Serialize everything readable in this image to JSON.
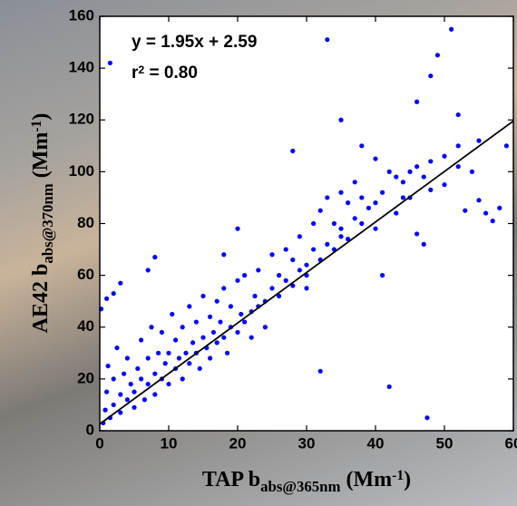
{
  "chart_data": {
    "type": "scatter",
    "color": "#0000ff",
    "xlim": [
      0,
      60
    ],
    "ylim": [
      0,
      160
    ],
    "xticks": [
      0,
      10,
      20,
      30,
      40,
      50,
      60
    ],
    "yticks": [
      0,
      20,
      40,
      60,
      80,
      100,
      120,
      140,
      160
    ],
    "fit": {
      "slope": 1.95,
      "intercept": 2.59,
      "color": "#000000"
    },
    "annotations": [
      [
        {
          "text": "y = 1.95x + 2.59"
        }
      ],
      [
        {
          "text": "r"
        },
        {
          "text": "2",
          "sup": true
        },
        {
          "text": " = 0.80"
        }
      ]
    ],
    "xlabel": [
      {
        "text": "TAP b"
      },
      {
        "text": "abs@365nm",
        "sub": true
      },
      {
        "text": " (Mm"
      },
      {
        "text": "-1",
        "sup": true
      },
      {
        "text": ")"
      }
    ],
    "ylabel": [
      {
        "text": "AE42 b"
      },
      {
        "text": "abs@370nm",
        "sub": true
      },
      {
        "text": " (Mm"
      },
      {
        "text": "-1",
        "sup": true
      },
      {
        "text": ")"
      }
    ],
    "x": [
      0.5,
      0.8,
      1,
      1.2,
      1.5,
      2,
      2,
      2.5,
      3,
      3,
      3.5,
      4,
      4,
      4.5,
      5,
      5,
      5.5,
      6,
      6,
      6.5,
      7,
      7,
      7.5,
      8,
      8,
      8.5,
      9,
      9,
      9.5,
      10,
      10,
      10.5,
      11,
      11,
      11.5,
      12,
      12,
      12.5,
      13,
      13,
      13.5,
      14,
      14,
      14.5,
      15,
      15,
      15.5,
      16,
      16,
      16.5,
      17,
      17,
      17.5,
      18,
      18,
      18.5,
      19,
      19,
      20,
      20,
      20.5,
      21,
      21,
      22,
      22,
      22.5,
      23,
      23,
      24,
      24,
      25,
      25,
      26,
      26,
      27,
      27,
      28,
      28,
      29,
      29,
      30,
      30,
      31,
      31,
      32,
      32,
      33,
      33,
      34,
      34,
      35,
      35,
      36,
      36,
      37,
      37,
      38,
      38,
      39,
      40,
      40,
      41,
      42,
      43,
      44,
      45,
      46,
      47,
      48,
      50,
      52,
      55,
      1.5,
      33,
      51,
      49,
      48,
      46,
      52,
      54,
      47.5,
      42,
      32,
      0.2,
      58,
      59,
      56,
      55,
      57,
      3,
      1,
      2,
      8,
      7,
      18,
      20,
      28,
      35,
      38,
      40,
      44,
      43,
      45,
      48,
      50,
      52,
      53,
      46,
      47,
      41,
      30,
      35
    ],
    "values": [
      3,
      8,
      15,
      25,
      5,
      10,
      20,
      32,
      7,
      14,
      22,
      12,
      28,
      18,
      9,
      15,
      24,
      20,
      35,
      12,
      18,
      28,
      40,
      14,
      22,
      30,
      20,
      38,
      26,
      18,
      30,
      45,
      24,
      35,
      28,
      20,
      40,
      30,
      26,
      48,
      34,
      30,
      42,
      24,
      36,
      52,
      32,
      28,
      44,
      38,
      34,
      50,
      42,
      36,
      55,
      30,
      40,
      48,
      38,
      58,
      45,
      42,
      60,
      46,
      36,
      52,
      48,
      62,
      50,
      40,
      55,
      68,
      52,
      60,
      58,
      70,
      56,
      66,
      62,
      75,
      64,
      55,
      70,
      80,
      66,
      85,
      72,
      90,
      70,
      80,
      78,
      92,
      74,
      88,
      82,
      96,
      80,
      90,
      86,
      88,
      78,
      92,
      100,
      84,
      96,
      90,
      102,
      98,
      104,
      106,
      102,
      112,
      142,
      151,
      155,
      145,
      137,
      127,
      122,
      100,
      5,
      17,
      23,
      47,
      86,
      110,
      84,
      89,
      81,
      57,
      51,
      53,
      67,
      62,
      68,
      78,
      108,
      120,
      110,
      105,
      90,
      98,
      100,
      93,
      95,
      110,
      85,
      76,
      72,
      60,
      60,
      75
    ]
  }
}
